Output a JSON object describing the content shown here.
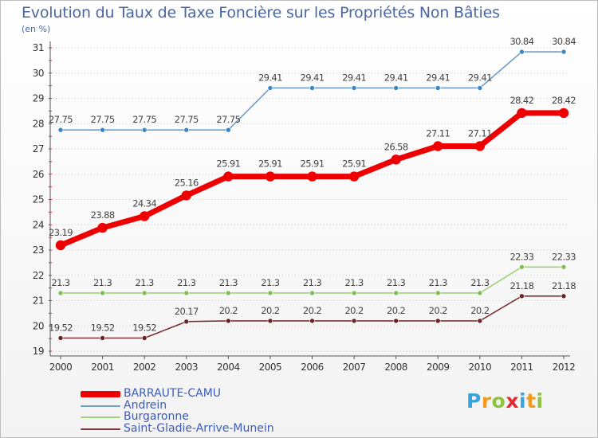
{
  "header": {
    "title": "Evolution du Taux de Taxe Foncière sur les Propriétés Non Bâties",
    "unit": "(en %)"
  },
  "brand": {
    "letters": [
      "P",
      "r",
      "o",
      "x",
      "i",
      "t",
      "i"
    ],
    "colors": [
      "#39a3dd",
      "#f29b1d",
      "#8bc53f",
      "#e4262e",
      "#39a3dd",
      "#f29b1d",
      "#8bc53f"
    ]
  },
  "chart_data": {
    "type": "line",
    "title": "Evolution du Taux de Taxe Foncière sur les Propriétés Non Bâties",
    "ylabel": "(en %)",
    "xlabel": "",
    "x": [
      "2000",
      "2001",
      "2002",
      "2003",
      "2004",
      "2005",
      "2006",
      "2007",
      "2008",
      "2009",
      "2010",
      "2011",
      "2012"
    ],
    "ylim": [
      19,
      31
    ],
    "yticks": [
      "19",
      "20",
      "21",
      "22",
      "23",
      "24",
      "25",
      "26",
      "27",
      "28",
      "29",
      "30",
      "31"
    ],
    "grid": "horizontal",
    "legend_position": "bottom-left",
    "series": [
      {
        "name": "BARRAUTE-CAMU",
        "color": "#ee0000",
        "highlight": true,
        "values": [
          23.19,
          23.88,
          24.34,
          25.16,
          25.91,
          25.91,
          25.91,
          25.91,
          26.58,
          27.11,
          27.11,
          28.42,
          28.42
        ],
        "labels": [
          "23.19",
          "23.88",
          "24.34",
          "25.16",
          "25.91",
          "25.91",
          "25.91",
          "25.91",
          "26.58",
          "27.11",
          "27.11",
          "28.42",
          "28.42"
        ]
      },
      {
        "name": "Andrein",
        "color": "#6e9fc8",
        "marker": "#3b86c4",
        "values": [
          27.75,
          27.75,
          27.75,
          27.75,
          27.75,
          29.41,
          29.41,
          29.41,
          29.41,
          29.41,
          29.41,
          30.84,
          30.84
        ],
        "labels": [
          "27.75",
          "27.75",
          "27.75",
          "27.75",
          "27.75",
          "29.41",
          "29.41",
          "29.41",
          "29.41",
          "29.41",
          "29.41",
          "30.84",
          "30.84"
        ]
      },
      {
        "name": "Burgaronne",
        "color": "#9ed27a",
        "marker": "#7cc04f",
        "values": [
          21.3,
          21.3,
          21.3,
          21.3,
          21.3,
          21.3,
          21.3,
          21.3,
          21.3,
          21.3,
          21.3,
          22.33,
          22.33
        ],
        "labels": [
          "21.3",
          "21.3",
          "21.3",
          "21.3",
          "21.3",
          "21.3",
          "21.3",
          "21.3",
          "21.3",
          "21.3",
          "21.3",
          "22.33",
          "22.33"
        ]
      },
      {
        "name": "Saint-Gladie-Arrive-Munein",
        "color": "#7a3436",
        "marker": "#6a2224",
        "values": [
          19.52,
          19.52,
          19.52,
          20.17,
          20.2,
          20.2,
          20.2,
          20.2,
          20.2,
          20.2,
          20.2,
          21.18,
          21.18
        ],
        "labels": [
          "19.52",
          "19.52",
          "19.52",
          "20.17",
          "20.2",
          "20.2",
          "20.2",
          "20.2",
          "20.2",
          "20.2",
          "20.2",
          "21.18",
          "21.18"
        ]
      }
    ]
  }
}
